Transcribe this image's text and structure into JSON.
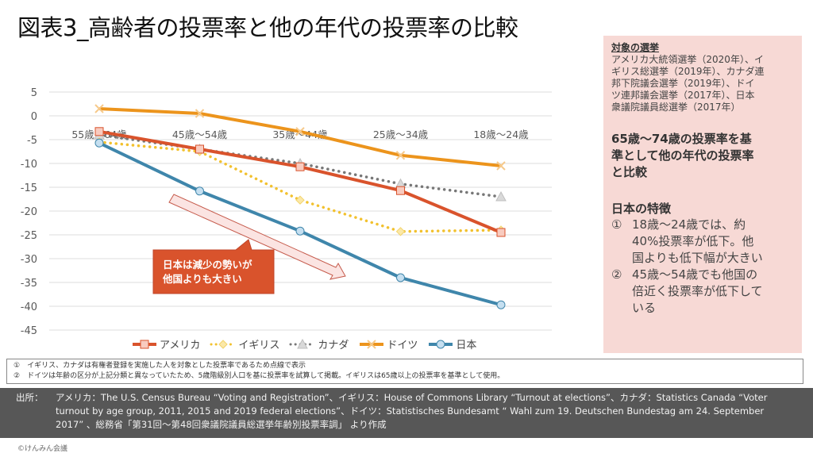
{
  "title": "図表3_高齢者の投票率と他の年代の投票率の比較",
  "chart_data": {
    "type": "line",
    "title": "",
    "xlabel": "",
    "ylabel": "",
    "ylim": [
      -45,
      5
    ],
    "yticks": [
      5,
      0,
      -5,
      -10,
      -15,
      -20,
      -25,
      -30,
      -35,
      -40,
      -45
    ],
    "ytick_labels": [
      "5",
      "0",
      "-5",
      "-10",
      "-15",
      "-20",
      "-25",
      "-30",
      "-35",
      "-40",
      "-45"
    ],
    "categories": [
      "55歳～64歳",
      "45歳～54歳",
      "35歳～44歳",
      "25歳～34歳",
      "18歳～24歳"
    ],
    "grid": true,
    "legend_position": "bottom",
    "series": [
      {
        "name": "アメリカ",
        "values": [
          -3.3,
          -7.0,
          -10.7,
          -15.7,
          -24.5
        ],
        "color": "#d9532c",
        "style": "solid",
        "marker": "square"
      },
      {
        "name": "イギリス",
        "values": [
          -5.5,
          -7.5,
          -17.7,
          -24.3,
          -24.0
        ],
        "color": "#f2c12e",
        "style": "dotted",
        "marker": "diamond"
      },
      {
        "name": "カナダ",
        "values": [
          -4.0,
          -7.0,
          -10.0,
          -14.3,
          -17.0
        ],
        "color": "#777777",
        "style": "dotted",
        "marker": "triangle"
      },
      {
        "name": "ドイツ",
        "values": [
          1.5,
          0.5,
          -3.3,
          -8.3,
          -10.5
        ],
        "color": "#ec941c",
        "style": "solid",
        "marker": "x"
      },
      {
        "name": "日本",
        "values": [
          -5.7,
          -15.8,
          -24.2,
          -34.0,
          -39.7
        ],
        "color": "#3f86ab",
        "style": "solid",
        "marker": "circle"
      }
    ],
    "annotation": {
      "line1": "日本は減少の勢いが",
      "line2": "他国よりも大きい"
    }
  },
  "side": {
    "heading": "対象の選挙",
    "lines": [
      "アメリカ大統領選挙（2020年）、イ",
      "ギリス総選挙（2019年）、カナダ連",
      "邦下院議会選挙（2019年）、ドイ",
      "ツ連邦議会選挙（2017年）、日本",
      "衆議院議員総選挙（2017年）"
    ],
    "compare_lines": [
      "65歳～74歳の投票率を基",
      "準として他の年代の投票率",
      "と比較"
    ],
    "feature_heading": "日本の特徴",
    "items": [
      {
        "num": "①",
        "lines": [
          "18歳～24歳では、約",
          "40%投票率が低下。他",
          "国よりも低下幅が大きい"
        ]
      },
      {
        "num": "②",
        "lines": [
          "45歳～54歳でも他国の",
          "倍近く投票率が低下して",
          "いる"
        ]
      }
    ]
  },
  "notes": [
    "①　イギリス、カナダは有権者登録を実施した人を対象とした投票率であるため点線で表示",
    "②　ドイツは年齢の区分が上記分類と異なっていたため、5歳階級別人口を基に投票率を試算して掲載。イギリスは65歳以上の投票率を基準として使用。"
  ],
  "source": {
    "label": "出所：",
    "line1": "アメリカ：The U.S. Census Bureau “Voting and Registration”、イギリス：House  of Commons Library “Turnout at elections”、カナダ：Statistics  Canada “Voter",
    "line2": "turnout by age group, 2011, 2015 and 2019 federal elections”、ドイツ：Statistisches  Bundesamt   “ Wahl zum 19. Deutschen Bundestag am 24. September",
    "line3": "2017” 、総務省「第31回～第48回衆議院議員総選挙年齢別投票率調」 より作成"
  },
  "copyright": "©けんみん会議"
}
